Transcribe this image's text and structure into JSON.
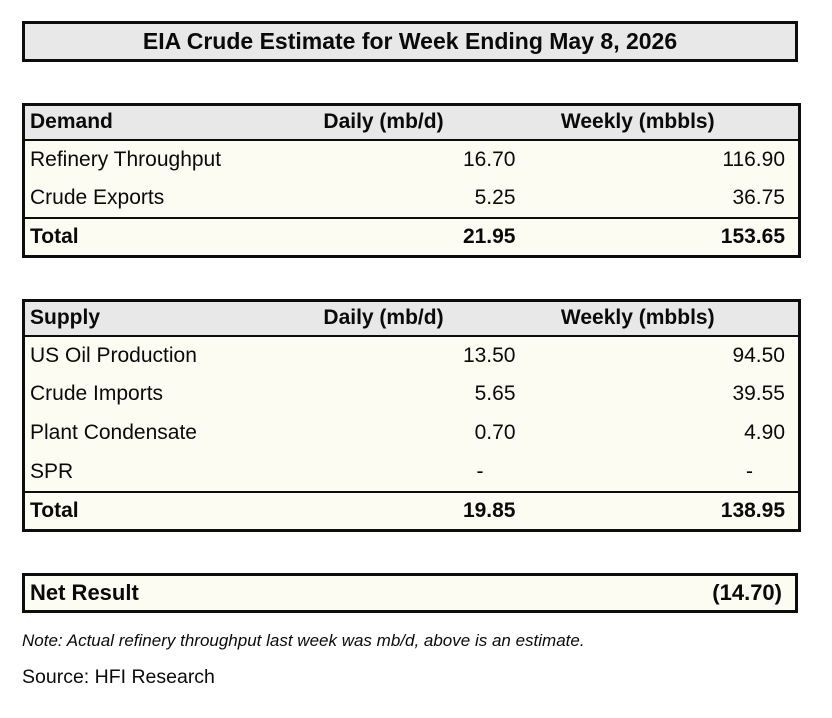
{
  "title": "EIA Crude Estimate for Week Ending May 8, 2026",
  "columns": {
    "daily": "Daily (mb/d)",
    "weekly": "Weekly (mbbls)"
  },
  "demand": {
    "header": "Demand",
    "rows": [
      {
        "label": "Refinery Throughput",
        "daily": "16.70",
        "weekly": "116.90"
      },
      {
        "label": "Crude Exports",
        "daily": "5.25",
        "weekly": "36.75"
      }
    ],
    "total": {
      "label": "Total",
      "daily": "21.95",
      "weekly": "153.65"
    }
  },
  "supply": {
    "header": "Supply",
    "rows": [
      {
        "label": "US Oil Production",
        "daily": "13.50",
        "weekly": "94.50"
      },
      {
        "label": "Crude Imports",
        "daily": "5.65",
        "weekly": "39.55"
      },
      {
        "label": "Plant Condensate",
        "daily": "0.70",
        "weekly": "4.90"
      },
      {
        "label": "SPR",
        "daily": "-",
        "weekly": "-"
      }
    ],
    "total": {
      "label": "Total",
      "daily": "19.85",
      "weekly": "138.95"
    }
  },
  "net_result": {
    "label": "Net Result",
    "value": "(14.70)"
  },
  "note": "Note: Actual refinery throughput last week was mb/d, above is an estimate.",
  "source": "Source: HFI Research",
  "colors": {
    "header_bg": "#e8e8e8",
    "body_bg": "#fdfcf3",
    "border": "#0d0d0d",
    "text": "#0a0a0a"
  }
}
